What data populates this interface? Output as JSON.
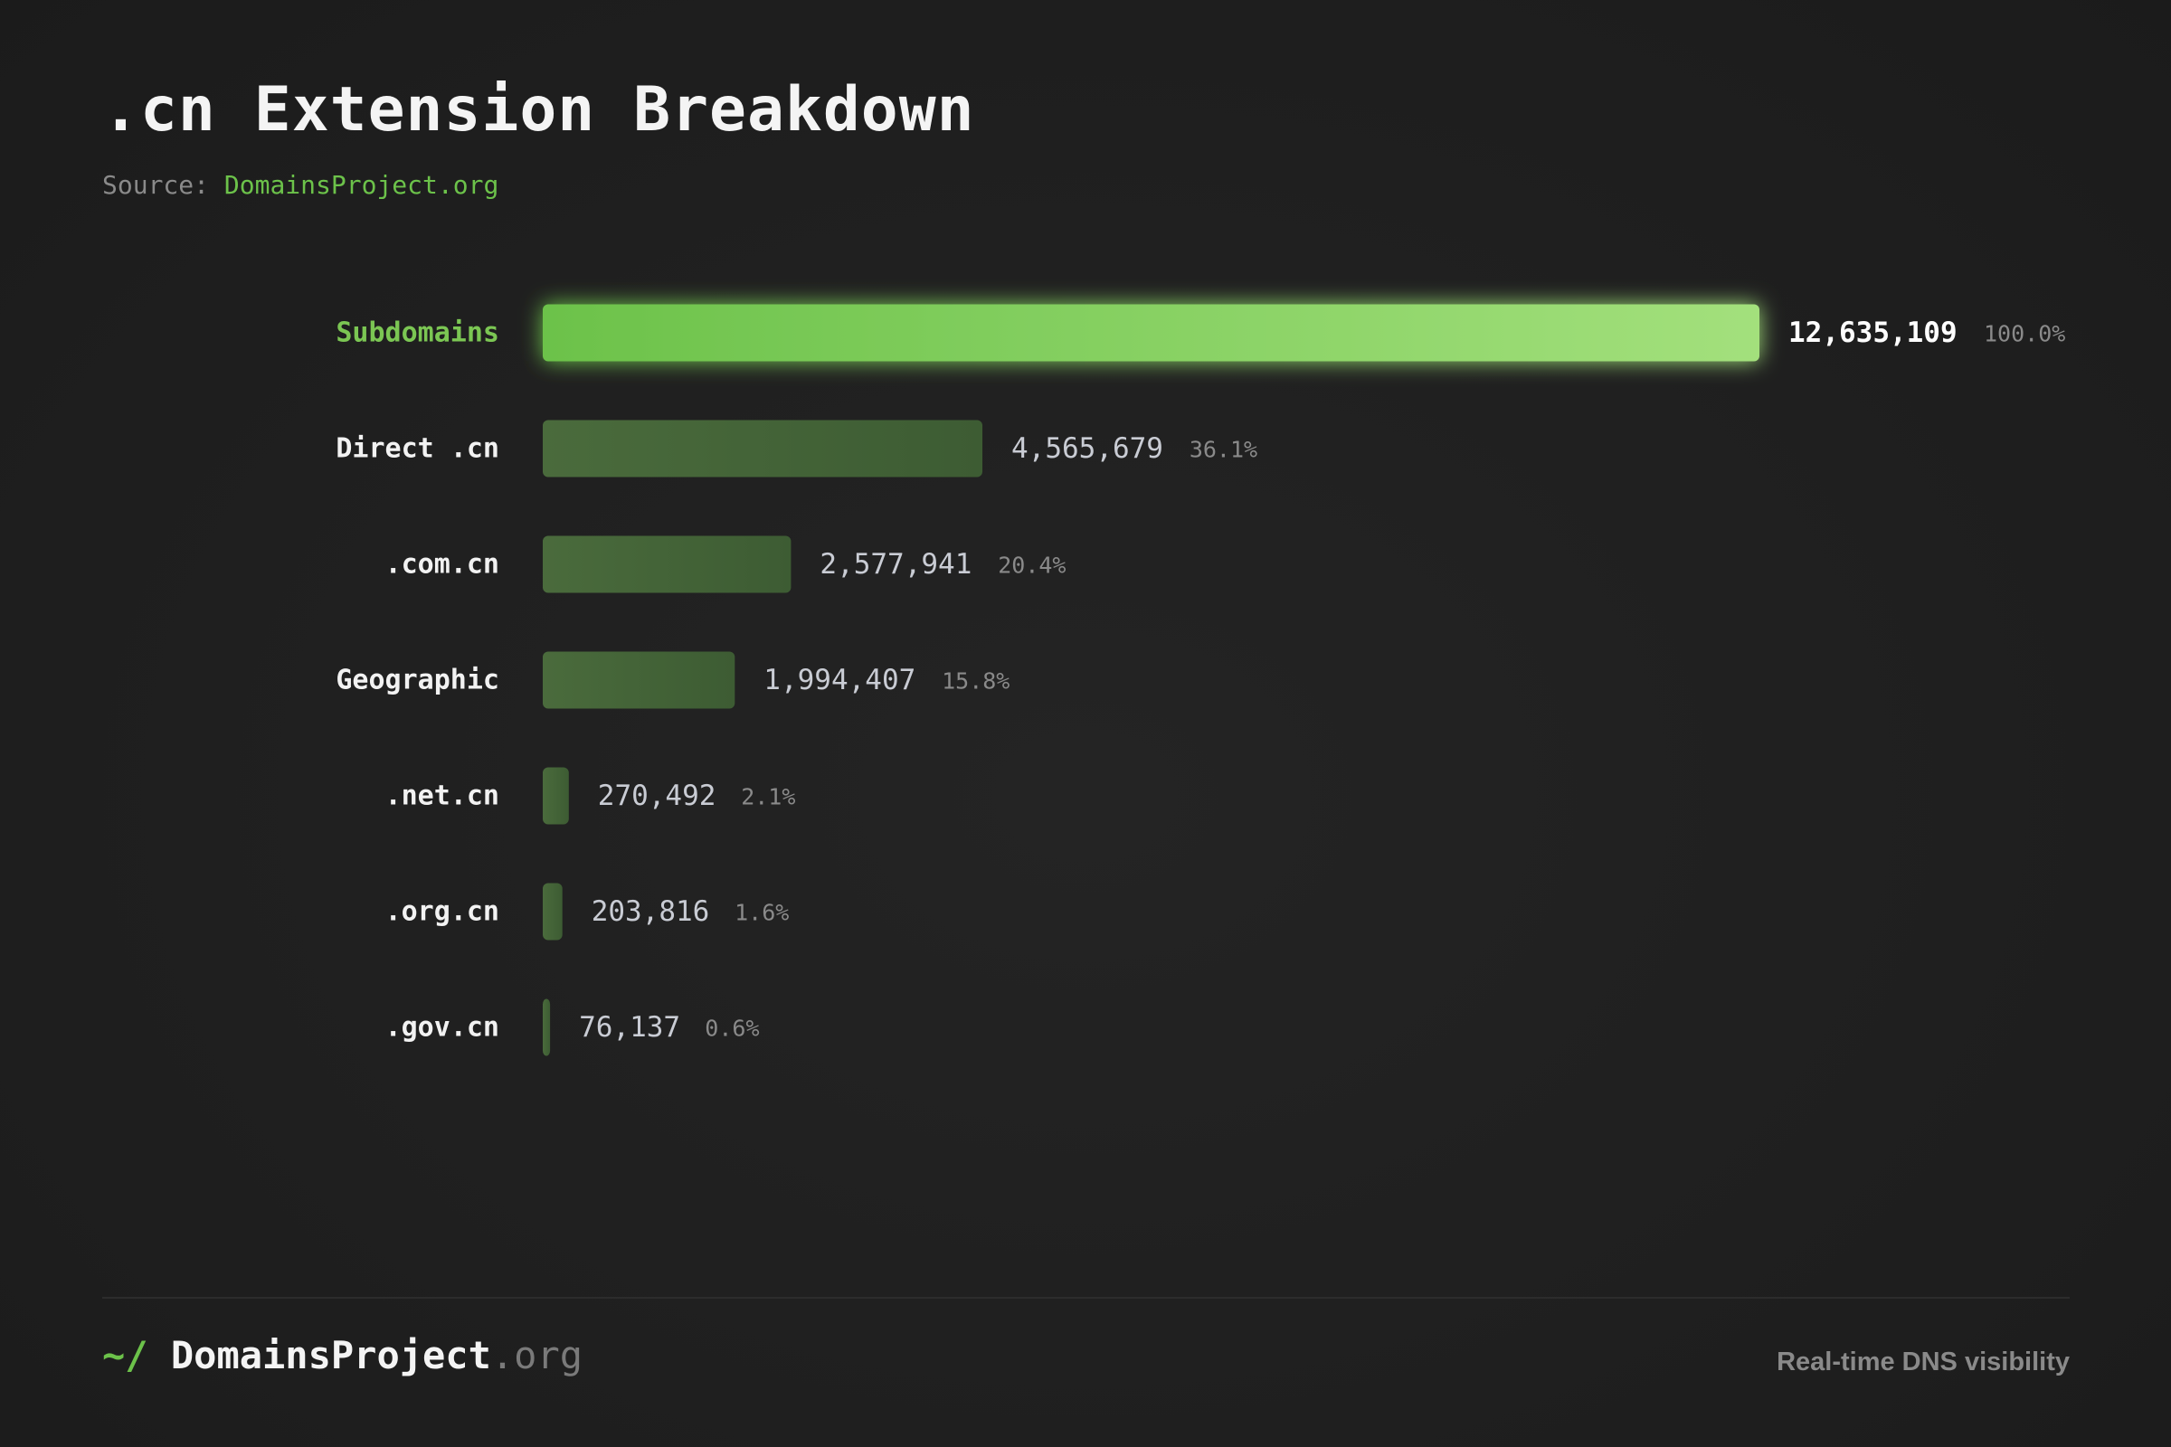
{
  "header": {
    "title": ".cn Extension Breakdown",
    "source_label": "Source:",
    "source_link": "DomainsProject.org"
  },
  "chart_data": {
    "type": "bar",
    "orientation": "horizontal",
    "categories": [
      "Subdomains",
      "Direct .cn",
      ".com.cn",
      "Geographic",
      ".net.cn",
      ".org.cn",
      ".gov.cn"
    ],
    "values": [
      12635109,
      4565679,
      2577941,
      1994407,
      270492,
      203816,
      76137
    ],
    "value_labels": [
      "12,635,109",
      "4,565,679",
      "2,577,941",
      "1,994,407",
      "270,492",
      "203,816",
      "76,137"
    ],
    "percent_labels": [
      "100.0%",
      "36.1%",
      "20.4%",
      "15.8%",
      "2.1%",
      "1.6%",
      "0.6%"
    ],
    "title": ".cn Extension Breakdown",
    "xlim": [
      0,
      12635109
    ],
    "highlight_category": "Subdomains",
    "grid": false,
    "colors": {
      "highlight_start": "#6cc24a",
      "highlight_end": "#a3e07c",
      "bar": "#3d5c33",
      "bar_light": "#4a6b3c",
      "label": "#f2f2f2",
      "label_highlight": "#7bc653",
      "value": "#c9ccd4",
      "value_highlight": "#ffffff",
      "percent": "#8a8a8a"
    }
  },
  "footer": {
    "brand_prompt": "~/",
    "brand_name": "DomainsProject",
    "brand_tld": ".org",
    "tagline": "Real-time DNS visibility"
  }
}
